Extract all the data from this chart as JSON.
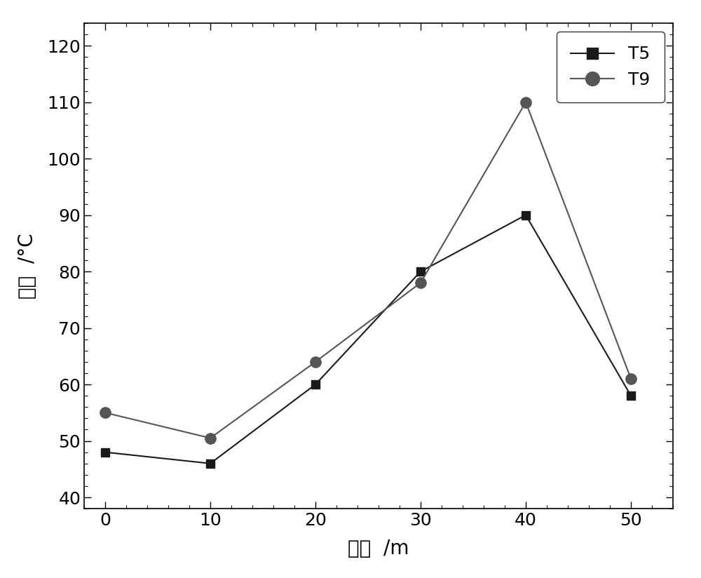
{
  "x": [
    0,
    10,
    20,
    30,
    40,
    50
  ],
  "T5_y": [
    48,
    46,
    60,
    80,
    90,
    58
  ],
  "T9_y": [
    55,
    50.5,
    64,
    78,
    110,
    61
  ],
  "T5_color": "#1a1a1a",
  "T9_color": "#555555",
  "T5_marker": "s",
  "T9_marker": "o",
  "T5_markersize": 9,
  "T9_markersize": 11,
  "T5_linewidth": 1.5,
  "T9_linewidth": 1.5,
  "xlabel": "深度  /m",
  "ylabel": "温度  /°C",
  "xlim": [
    -2,
    54
  ],
  "ylim": [
    38,
    124
  ],
  "xticks": [
    0,
    10,
    20,
    30,
    40,
    50
  ],
  "yticks": [
    40,
    50,
    60,
    70,
    80,
    90,
    100,
    110,
    120
  ],
  "legend_labels": [
    "T5",
    "T9"
  ],
  "xlabel_fontsize": 20,
  "ylabel_fontsize": 20,
  "tick_fontsize": 18,
  "legend_fontsize": 18,
  "background_color": "#ffffff",
  "minor_xtick_interval": 2,
  "minor_ytick_interval": 2
}
